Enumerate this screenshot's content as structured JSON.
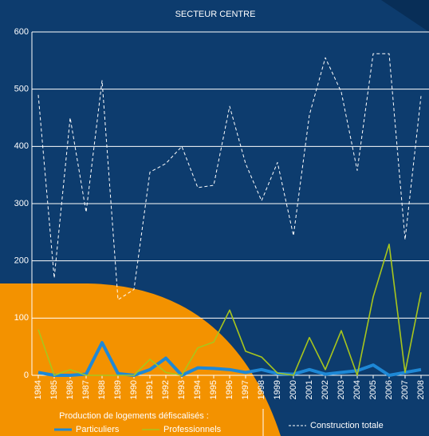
{
  "chart_data": {
    "type": "line",
    "title": "SECTEUR CENTRE",
    "legend_title": "Production de logements défiscalisés :",
    "categories": [
      "1984",
      "1985",
      "1986",
      "1987",
      "1988",
      "1989",
      "1990",
      "1991",
      "1992",
      "1993",
      "1994",
      "1995",
      "1996",
      "1997",
      "1998",
      "1999",
      "2000",
      "2001",
      "2002",
      "2003",
      "2004",
      "2005",
      "2006",
      "2007",
      "2008"
    ],
    "series": [
      {
        "name": "Particuliers",
        "color": "#1e88d6",
        "style": "solid",
        "width": 4,
        "values": [
          5,
          0,
          0,
          2,
          57,
          3,
          0,
          10,
          30,
          0,
          13,
          12,
          10,
          5,
          10,
          3,
          2,
          10,
          2,
          5,
          8,
          18,
          0,
          5,
          10
        ]
      },
      {
        "name": "Professionnels",
        "color": "#a8c61c",
        "style": "solid",
        "width": 1.6,
        "values": [
          80,
          0,
          10,
          0,
          0,
          0,
          0,
          28,
          5,
          0,
          48,
          58,
          114,
          42,
          32,
          4,
          0,
          66,
          10,
          78,
          0,
          137,
          229,
          5,
          145
        ]
      },
      {
        "name": "Construction totale",
        "color": "#ffffff",
        "style": "dashed",
        "width": 1,
        "values": [
          490,
          170,
          450,
          285,
          515,
          132,
          150,
          355,
          370,
          400,
          328,
          332,
          470,
          370,
          305,
          372,
          244,
          455,
          555,
          495,
          358,
          562,
          562,
          237,
          488
        ]
      }
    ],
    "ylim": [
      0,
      600
    ],
    "yticks": [
      0,
      100,
      200,
      300,
      400,
      500,
      600
    ],
    "grid": true
  }
}
